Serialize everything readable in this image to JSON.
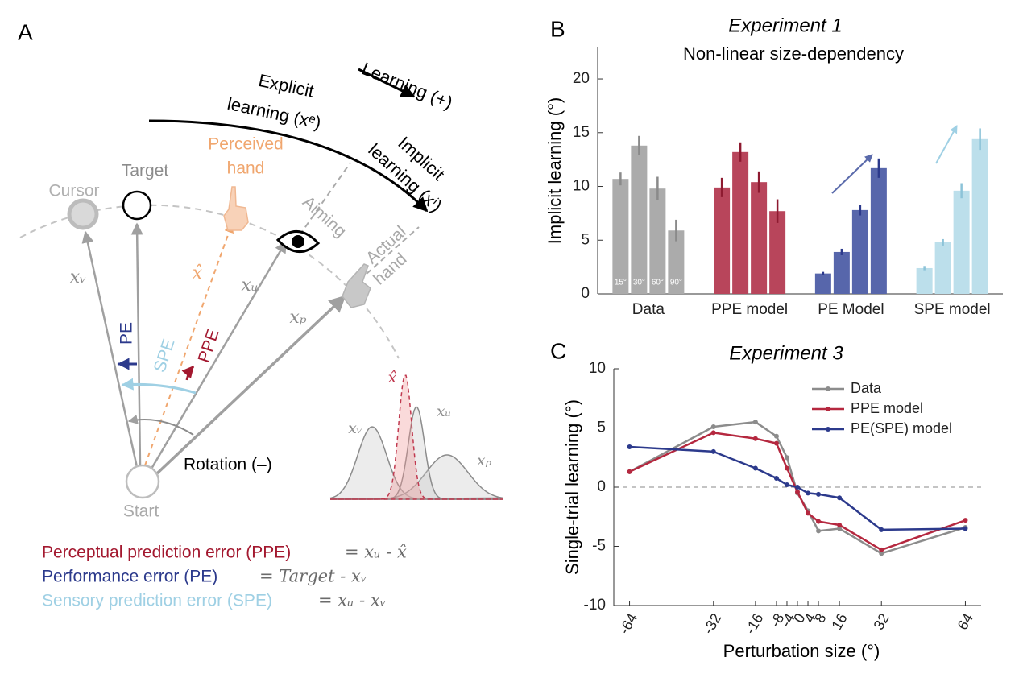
{
  "diagram": {
    "label": "A",
    "explicit": [
      "Explicit",
      "learning (xᵉ)"
    ],
    "learning": "Learning (+)",
    "implicit": [
      "Implicit",
      "learning (xⁱ)"
    ],
    "perceived_hand": [
      "Perceived",
      "hand"
    ],
    "cursor": "Cursor",
    "target": "Target",
    "aiming": "Aiming",
    "actual_hand": [
      "Actual",
      "hand"
    ],
    "vectors": {
      "cursor": "xᵥ",
      "perceived": "x̂",
      "aim": "xᵤ",
      "hand": "xₚ"
    },
    "errors": {
      "pe": "PE",
      "spe": "SPE",
      "ppe": "PPE"
    },
    "rotation": "Rotation (–)",
    "start": "Start",
    "distributions": {
      "cursor": "xᵥ",
      "perceived": "x̂",
      "aim": "xᵤ",
      "hand": "xₚ"
    },
    "definitions": [
      {
        "name": "Perceptual prediction error (PPE)",
        "equation": "= xᵤ - x̂"
      },
      {
        "name": "Performance error (PE)",
        "equation": "= Target - xᵥ"
      },
      {
        "name": "Sensory prediction error (SPE)",
        "equation": "= xᵤ - xᵥ"
      }
    ]
  },
  "chart_data": [
    {
      "type": "bar",
      "panel_label": "B",
      "title": "Experiment 1",
      "subtitle": "Non-linear size-dependency",
      "y_label": "Implicit learning (°)",
      "bar_labels": [
        "15°",
        "30°",
        "60°",
        "90°"
      ],
      "groups": [
        {
          "name": "Data",
          "color": "#ababab",
          "error_color": "#8a8a8a",
          "values": [
            10.7,
            13.8,
            9.8,
            5.9
          ],
          "errors": [
            0.6,
            0.9,
            1.1,
            1.0
          ]
        },
        {
          "name": "PPE model",
          "color": "#b8455b",
          "error_color": "#8e1a30",
          "values": [
            9.9,
            13.2,
            10.4,
            7.7
          ],
          "errors": [
            0.9,
            0.9,
            1.0,
            1.1
          ]
        },
        {
          "name": "PE Model",
          "color": "#5766ab",
          "error_color": "#2c3a8c",
          "values": [
            1.9,
            3.9,
            7.8,
            11.7
          ],
          "errors": [
            0.15,
            0.3,
            0.5,
            0.9
          ]
        },
        {
          "name": "SPE model",
          "color": "#bcdfeb",
          "error_color": "#8cc3d8",
          "values": [
            2.4,
            4.8,
            9.6,
            14.4
          ],
          "errors": [
            0.2,
            0.3,
            0.7,
            1.0
          ]
        }
      ],
      "ylim": [
        0,
        23
      ],
      "yticks": [
        0,
        5,
        10,
        15,
        20
      ]
    },
    {
      "type": "line",
      "panel_label": "C",
      "title": "Experiment 3",
      "x_label": "Perturbation size (°)",
      "y_label": "Single-trial learning (°)",
      "x": [
        -64,
        -32,
        -16,
        -8,
        -4,
        0,
        4,
        8,
        16,
        32,
        64
      ],
      "series": [
        {
          "name": "Data",
          "color": "#8c8c8c",
          "values": [
            1.3,
            5.1,
            5.5,
            4.3,
            2.5,
            -0.5,
            -2.0,
            -3.7,
            -3.5,
            -5.6,
            -3.4
          ]
        },
        {
          "name": "PPE model",
          "color": "#b5283f",
          "values": [
            1.3,
            4.6,
            4.1,
            3.7,
            1.6,
            -0.4,
            -2.2,
            -2.9,
            -3.2,
            -5.3,
            -2.8
          ]
        },
        {
          "name": "PE(SPE) model",
          "color": "#2c3a8c",
          "values": [
            3.4,
            3.0,
            1.6,
            0.75,
            0.2,
            0.0,
            -0.5,
            -0.6,
            -0.9,
            -3.6,
            -3.5
          ]
        }
      ],
      "xlim": [
        -70,
        70
      ],
      "xticks": [
        -64,
        -32,
        -16,
        -8,
        -4,
        0,
        4,
        8,
        16,
        32,
        64
      ],
      "ylim": [
        -10,
        10
      ],
      "yticks": [
        -10,
        -5,
        0,
        5,
        10
      ],
      "legend": "upper right"
    }
  ]
}
